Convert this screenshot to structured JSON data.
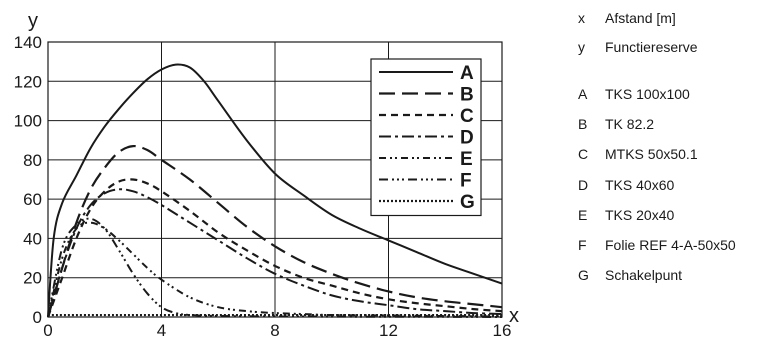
{
  "chart_data": {
    "type": "line",
    "xlabel": "x",
    "ylabel": "y",
    "xlim": [
      0,
      16
    ],
    "ylim": [
      0,
      140
    ],
    "xticks": [
      "0",
      "4",
      "8",
      "12",
      "16"
    ],
    "yticks": [
      "0",
      "20",
      "40",
      "60",
      "80",
      "100",
      "120",
      "140"
    ],
    "grid": true,
    "legend_position": "top-right",
    "series": [
      {
        "name": "A",
        "dash": "solid",
        "x": [
          0,
          0.2,
          0.5,
          1,
          1.5,
          2,
          2.5,
          3,
          3.5,
          4,
          4.5,
          5,
          5.5,
          6,
          7,
          8,
          9,
          10,
          11,
          12,
          13,
          14,
          15,
          16
        ],
        "y": [
          0,
          40,
          58,
          72,
          86,
          97,
          106,
          114,
          121,
          126,
          128.5,
          127,
          120,
          110,
          90,
          73,
          62,
          52,
          45,
          39,
          33,
          27,
          22,
          17
        ]
      },
      {
        "name": "B",
        "dash": "longdash",
        "x": [
          0,
          0.5,
          1,
          1.5,
          2,
          2.5,
          3,
          3.5,
          4,
          5,
          6,
          7,
          8,
          9,
          10,
          11,
          12,
          13,
          14,
          15,
          16
        ],
        "y": [
          0,
          25,
          48,
          65,
          76,
          84,
          87,
          85,
          80,
          70,
          58,
          46,
          36,
          28,
          22,
          17,
          13,
          10,
          8,
          6.5,
          5
        ]
      },
      {
        "name": "C",
        "dash": "shortdash",
        "x": [
          0,
          0.5,
          1,
          1.5,
          2,
          2.5,
          3,
          3.5,
          4,
          5,
          6,
          7,
          8,
          9,
          10,
          11,
          12,
          13,
          14,
          15,
          16
        ],
        "y": [
          0,
          20,
          40,
          55,
          64,
          69,
          70,
          68,
          64,
          54,
          43,
          34,
          26,
          20,
          16,
          12,
          9,
          7,
          5.5,
          4,
          3
        ]
      },
      {
        "name": "D",
        "dash": "dashdot",
        "x": [
          0,
          0.5,
          1,
          1.5,
          2,
          2.5,
          3,
          3.5,
          4,
          5,
          6,
          7,
          8,
          9,
          10,
          11,
          12,
          13,
          14,
          15,
          16
        ],
        "y": [
          0,
          25,
          45,
          57,
          63,
          65,
          64,
          61,
          57,
          48,
          39,
          30,
          22,
          16,
          11,
          8,
          6,
          4,
          3,
          2,
          1.5
        ]
      },
      {
        "name": "E",
        "dash": "dashdotdot",
        "x": [
          0,
          0.5,
          1,
          1.5,
          2,
          2.5,
          3,
          3.5,
          4,
          5,
          6,
          7,
          8,
          9,
          10,
          12,
          14,
          16
        ],
        "y": [
          0,
          30,
          45,
          48,
          45,
          39,
          32,
          25,
          19,
          10,
          5,
          3,
          2,
          1.5,
          1,
          0.8,
          0.5,
          0.3
        ]
      },
      {
        "name": "F",
        "dash": "dashdotdot2",
        "x": [
          0,
          0.5,
          1,
          1.5,
          2,
          2.5,
          3,
          3.5,
          4,
          4.5,
          5,
          6,
          8,
          10,
          12,
          14,
          16
        ],
        "y": [
          0,
          35,
          47,
          50,
          45,
          34,
          22,
          12,
          5,
          2,
          1,
          0.5,
          0.3,
          0.2,
          0.1,
          0.1,
          0
        ]
      },
      {
        "name": "G",
        "dash": "dotted",
        "x": [
          0,
          16
        ],
        "y": [
          1,
          1
        ]
      }
    ]
  },
  "key": [
    {
      "code": "x",
      "text": "Afstand [m]"
    },
    {
      "code": "y",
      "text": "Functiereserve"
    },
    {
      "code": "A",
      "text": "TKS 100x100"
    },
    {
      "code": "B",
      "text": "TK 82.2"
    },
    {
      "code": "C",
      "text": "MTKS 50x50.1"
    },
    {
      "code": "D",
      "text": "TKS 40x60"
    },
    {
      "code": "E",
      "text": "TKS 20x40"
    },
    {
      "code": "F",
      "text": "Folie REF 4-A-50x50"
    },
    {
      "code": "G",
      "text": "Schakelpunt"
    }
  ]
}
